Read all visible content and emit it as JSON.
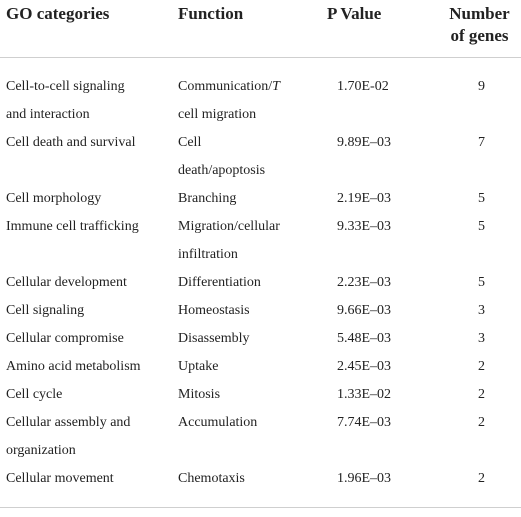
{
  "table": {
    "headers": {
      "go_categories": "GO categories",
      "function": "Function",
      "p_value": "P Value",
      "number_of_genes_line1": "Number",
      "number_of_genes_line2": "of genes"
    },
    "rows": [
      {
        "category": [
          "Cell-to-cell signaling",
          "and interaction"
        ],
        "function": [
          "Communication/T",
          "cell migration"
        ],
        "p_value": "1.70E-02",
        "genes": "9"
      },
      {
        "category": [
          "Cell death and survival"
        ],
        "function": [
          "Cell",
          "death/apoptosis"
        ],
        "p_value": "9.89E–03",
        "genes": "7"
      },
      {
        "category": [
          "Cell morphology"
        ],
        "function": [
          "Branching"
        ],
        "p_value": "2.19E–03",
        "genes": "5"
      },
      {
        "category": [
          "Immune cell trafficking"
        ],
        "function": [
          "Migration/cellular",
          "infiltration"
        ],
        "p_value": "9.33E–03",
        "genes": "5"
      },
      {
        "category": [
          "Cellular development"
        ],
        "function": [
          "Differentiation"
        ],
        "p_value": "2.23E–03",
        "genes": "5"
      },
      {
        "category": [
          "Cell signaling"
        ],
        "function": [
          "Homeostasis"
        ],
        "p_value": "9.66E–03",
        "genes": "3"
      },
      {
        "category": [
          "Cellular compromise"
        ],
        "function": [
          "Disassembly"
        ],
        "p_value": "5.48E–03",
        "genes": "3"
      },
      {
        "category": [
          "Amino acid metabolism"
        ],
        "function": [
          "Uptake"
        ],
        "p_value": "2.45E–03",
        "genes": "2"
      },
      {
        "category": [
          "Cell cycle"
        ],
        "function": [
          "Mitosis"
        ],
        "p_value": "1.33E–02",
        "genes": "2"
      },
      {
        "category": [
          "Cellular assembly and",
          "organization"
        ],
        "function": [
          "Accumulation"
        ],
        "p_value": "7.74E–03",
        "genes": "2"
      },
      {
        "category": [
          "Cellular movement"
        ],
        "function": [
          "Chemotaxis"
        ],
        "p_value": "1.96E–03",
        "genes": "2"
      }
    ]
  }
}
